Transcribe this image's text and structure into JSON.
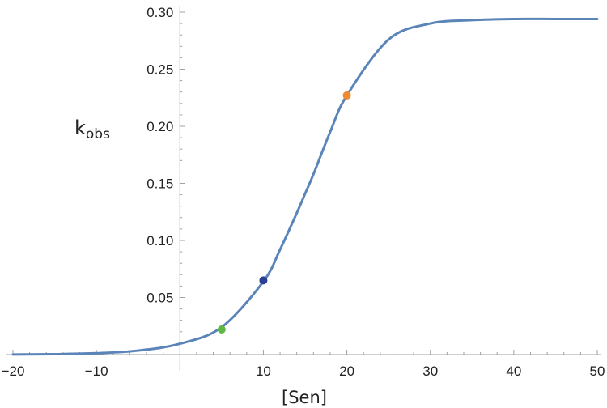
{
  "chart_data": {
    "type": "line",
    "title": "",
    "xlabel": "[Sen]",
    "ylabel_main": "k",
    "ylabel_sub": "obs",
    "xlim": [
      -20,
      50
    ],
    "ylim": [
      0,
      0.3
    ],
    "grid": false,
    "x_ticks": [
      -20,
      -10,
      10,
      20,
      30,
      40,
      50
    ],
    "x_tick_labels": [
      "−20",
      "−10",
      "10",
      "20",
      "30",
      "40",
      "50"
    ],
    "y_ticks": [
      0.05,
      0.1,
      0.15,
      0.2,
      0.25,
      0.3
    ],
    "y_tick_labels": [
      "0.05",
      "0.10",
      "0.15",
      "0.20",
      "0.25",
      "0.30"
    ],
    "series": [
      {
        "color": "#5b84b8",
        "x": [
          -20,
          -15,
          -10,
          -5,
          0,
          5,
          10,
          12,
          14,
          15,
          16,
          18,
          20,
          25,
          30,
          35,
          40,
          45,
          50
        ],
        "y": [
          0.0001,
          0.0004,
          0.0012,
          0.0035,
          0.0095,
          0.024,
          0.064,
          0.092,
          0.124,
          0.141,
          0.158,
          0.195,
          0.227,
          0.276,
          0.29,
          0.293,
          0.294,
          0.294,
          0.294
        ]
      }
    ],
    "points": [
      {
        "x": 5,
        "y": 0.022,
        "color": "#5db846"
      },
      {
        "x": 10,
        "y": 0.065,
        "color": "#2b3f93"
      },
      {
        "x": 20,
        "y": 0.227,
        "color": "#f08a2e"
      }
    ]
  }
}
